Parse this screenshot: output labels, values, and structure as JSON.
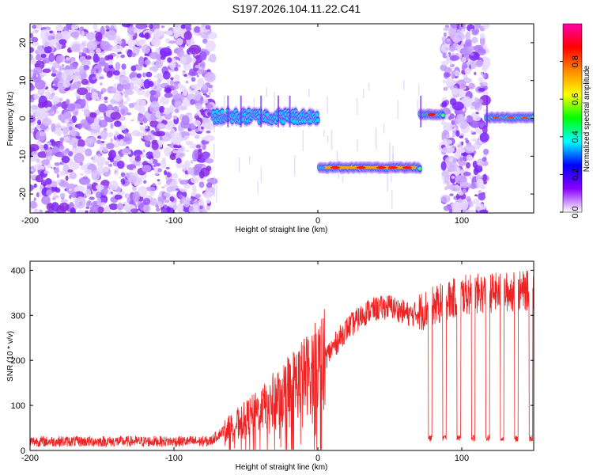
{
  "title": "S197.2026.104.11.22.C41",
  "chart_data": [
    {
      "type": "heatmap",
      "name": "spectrogram",
      "xlabel": "Height of straight line (km)",
      "ylabel": "Frequency (Hz)",
      "xlim": [
        -200,
        150
      ],
      "ylim": [
        -25,
        25
      ],
      "xticks": [
        -200,
        -100,
        0,
        100
      ],
      "yticks": [
        -20,
        -10,
        0,
        10,
        20
      ],
      "colorbar": {
        "label": "Normalized spectral amplitude",
        "range": [
          0.0,
          1.0
        ],
        "ticks": [
          0.0,
          0.2,
          0.4,
          0.6,
          0.8
        ],
        "tick_labels": [
          "0.0",
          "0.2",
          "0.4",
          "0.6",
          "0.8"
        ],
        "colors": [
          "#ffffff",
          "#8800ff",
          "#0000ff",
          "#00ffff",
          "#00ff00",
          "#ffff00",
          "#ff8800",
          "#ff0000",
          "#ff00aa"
        ]
      },
      "regions": [
        {
          "x": [
            -200,
            -73
          ],
          "freq": "broadband noise",
          "amplitude": 0.1
        },
        {
          "x": [
            -73,
            0
          ],
          "freq": 0,
          "amplitude": 0.35
        },
        {
          "x": [
            0,
            71
          ],
          "freq": -13,
          "amplitude": 0.9
        },
        {
          "x": [
            71,
            87
          ],
          "freq": 1,
          "amplitude": 0.9
        },
        {
          "x": [
            87,
            117
          ],
          "freq": "broadband noise",
          "amplitude": 0.1
        },
        {
          "x": [
            117,
            150
          ],
          "freq": 0,
          "amplitude": 0.7
        }
      ]
    },
    {
      "type": "line",
      "name": "snr",
      "xlabel": "Height of straight line (km)",
      "ylabel": "SNR (10 * v/v)",
      "xlim": [
        -200,
        150
      ],
      "ylim": [
        0,
        420
      ],
      "xticks": [
        -200,
        -100,
        0,
        100
      ],
      "yticks": [
        0,
        100,
        200,
        300,
        400
      ],
      "color": "#ee2222",
      "trend": {
        "x": [
          -200,
          -75,
          -65,
          -40,
          -20,
          -5,
          5,
          20,
          35,
          50,
          65,
          80,
          100,
          120,
          150
        ],
        "y": [
          20,
          20,
          45,
          90,
          140,
          175,
          205,
          270,
          310,
          320,
          300,
          320,
          345,
          350,
          355
        ]
      },
      "dropouts": [
        78,
        88,
        98,
        108,
        118,
        128,
        138,
        148
      ]
    }
  ]
}
